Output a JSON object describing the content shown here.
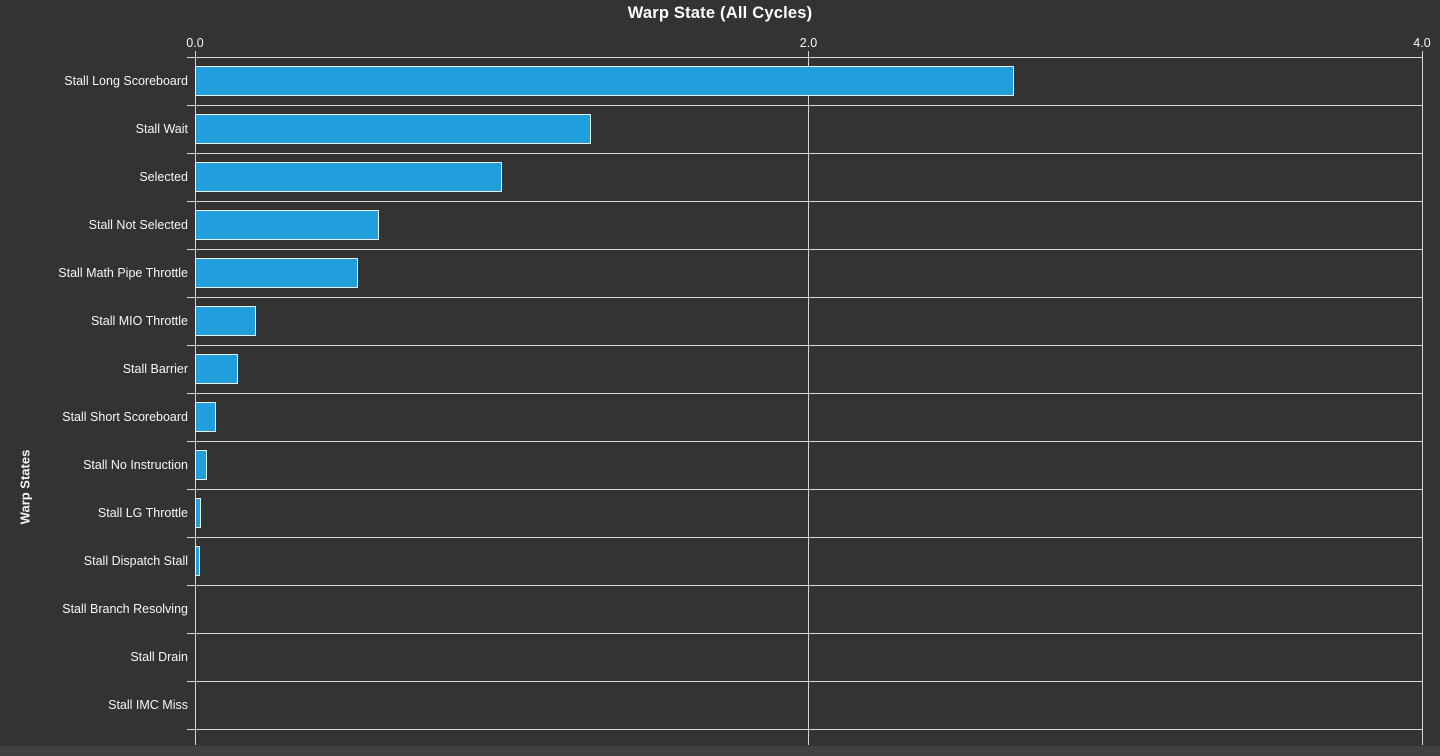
{
  "theme": {
    "background": "#333333",
    "text_color": "#f5f5f5",
    "grid_color": "#d4d7d9",
    "bar_fill": "#219fdc",
    "bar_border": "#eaf0f2",
    "bottom_strip": "#404040"
  },
  "chart_data": {
    "type": "bar",
    "orientation": "horizontal",
    "title": "Warp State (All Cycles)",
    "ylabel": "Warp States",
    "xlabel": "",
    "xlim": [
      0,
      4
    ],
    "x_ticks": [
      {
        "value": 0,
        "label": "0.0"
      },
      {
        "value": 2,
        "label": "2.0"
      },
      {
        "value": 4,
        "label": "4.0"
      }
    ],
    "grid": true,
    "legend": null,
    "categories": [
      "Stall Long Scoreboard",
      "Stall Wait",
      "Selected",
      "Stall Not Selected",
      "Stall Math Pipe Throttle",
      "Stall MIO Throttle",
      "Stall Barrier",
      "Stall Short Scoreboard",
      "Stall No Instruction",
      "Stall LG Throttle",
      "Stall Dispatch Stall",
      "Stall Branch Resolving",
      "Stall Drain",
      "Stall IMC Miss"
    ],
    "values": [
      2.67,
      1.29,
      1.0,
      0.6,
      0.53,
      0.2,
      0.14,
      0.07,
      0.04,
      0.02,
      0.015,
      0.0,
      0.0,
      0.0
    ]
  }
}
